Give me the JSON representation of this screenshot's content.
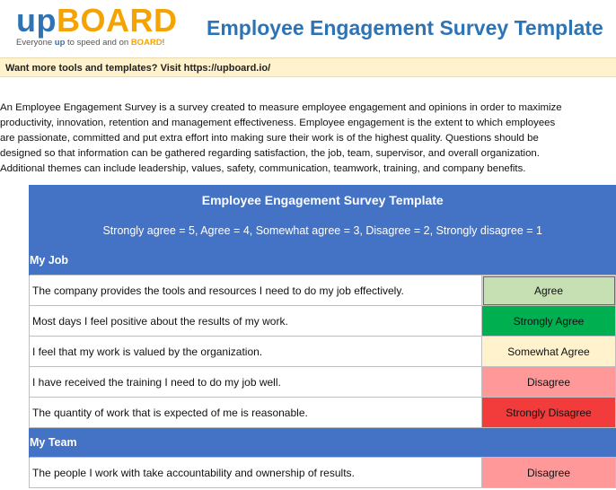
{
  "logo": {
    "up": "up",
    "board": "BOARD",
    "tagline_parts": [
      "Everyone ",
      "up",
      " to speed and on ",
      "BOARD",
      "!"
    ]
  },
  "title": "Employee Engagement Survey Template",
  "banner": {
    "text": "Want more tools and templates? ",
    "link_text": "Visit https://upboard.io/"
  },
  "intro_lines": [
    "An Employee Engagement Survey is a survey created to measure employee engagement and opinions in order to maximize",
    "productivity, innovation, retention and management effectiveness. Employee engagement is the extent to which employees",
    "are passionate, committed and put extra effort into making sure their work is of the highest quality. Questions should be",
    "designed so that information can be gathered regarding satisfaction, the job, team, supervisor, and overall organization.",
    "Additional themes can include leadership, values, safety, communication, teamwork, training, and company benefits."
  ],
  "table": {
    "title": "Employee Engagement Survey Template",
    "scale": "Strongly agree = 5, Agree = 4, Somewhat agree = 3, Disagree = 2, Strongly disagree  = 1",
    "sections": [
      {
        "name": "My Job",
        "questions": [
          {
            "text": "The company provides the tools and resources I need to do my job effectively.",
            "answer": "Agree",
            "color": "#C6E0B4",
            "selected": true
          },
          {
            "text": "Most days I feel positive about the results of my work.",
            "answer": "Strongly Agree",
            "color": "#00B050",
            "selected": false
          },
          {
            "text": "I feel that my work is valued by the organization.",
            "answer": "Somewhat Agree",
            "color": "#FFF2CC",
            "selected": false
          },
          {
            "text": "I have received the training I need to do my job well.",
            "answer": "Disagree",
            "color": "#FF9999",
            "selected": false
          },
          {
            "text": "The quantity of work that is expected of me is reasonable.",
            "answer": "Strongly Disagree",
            "color": "#F23C3C",
            "selected": false
          }
        ]
      },
      {
        "name": "My Team",
        "questions": [
          {
            "text": "The people I work with take accountability and ownership of results.",
            "answer": "Disagree",
            "color": "#FF9999",
            "selected": false
          }
        ]
      }
    ]
  }
}
